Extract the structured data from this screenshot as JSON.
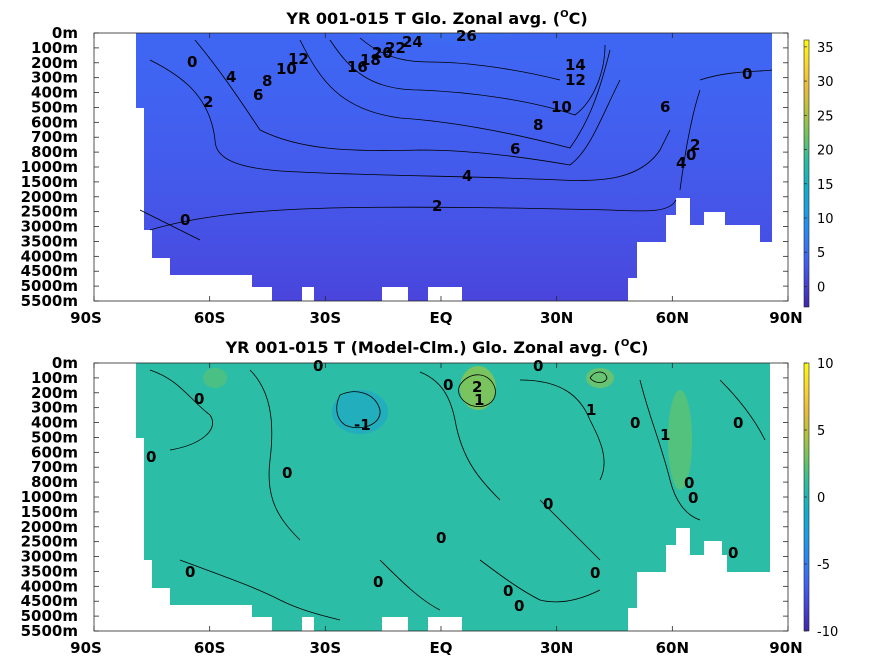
{
  "chart_data": [
    {
      "type": "heatmap",
      "title": "YR 001-015 T Glo. Zonal avg. (",
      "title_unit_sup": "O",
      "title_unit_tail": "C)",
      "x_ticks": [
        "90S",
        "60S",
        "30S",
        "EQ",
        "30N",
        "60N",
        "90N"
      ],
      "y_ticks": [
        "0m",
        "100m",
        "200m",
        "300m",
        "400m",
        "500m",
        "600m",
        "700m",
        "800m",
        "1000m",
        "1500m",
        "2000m",
        "2500m",
        "3000m",
        "3500m",
        "4000m",
        "4500m",
        "5000m",
        "5500m"
      ],
      "colorbar_ticks": [
        "35",
        "30",
        "25",
        "20",
        "15",
        "10",
        "5",
        "0"
      ],
      "colorbar_range": [
        -3,
        36
      ],
      "colormap": [
        "#3e26a8",
        "#4743d7",
        "#3f64f3",
        "#2b85f4",
        "#1c9ee6",
        "#11b0c7",
        "#2dbca0",
        "#6cc462",
        "#b2c23e",
        "#e9bb3b",
        "#fbd52f",
        "#f9fb0e"
      ],
      "contour_labels": [
        "0",
        "4",
        "2",
        "6",
        "8",
        "10",
        "12",
        "16",
        "18",
        "20",
        "22",
        "24",
        "26",
        "14",
        "12",
        "10",
        "8",
        "6",
        "4",
        "2",
        "0",
        "6",
        "4",
        "0",
        "2",
        "0"
      ]
    },
    {
      "type": "heatmap",
      "title": "YR 001-015 T (Model-Clm.) Glo. Zonal avg. (",
      "title_unit_sup": "O",
      "title_unit_tail": "C)",
      "x_ticks": [
        "90S",
        "60S",
        "30S",
        "EQ",
        "30N",
        "60N",
        "90N"
      ],
      "y_ticks": [
        "0m",
        "100m",
        "200m",
        "300m",
        "400m",
        "500m",
        "600m",
        "700m",
        "800m",
        "1000m",
        "1500m",
        "2000m",
        "2500m",
        "3000m",
        "3500m",
        "4000m",
        "4500m",
        "5000m",
        "5500m"
      ],
      "colorbar_ticks": [
        "10",
        "5",
        "0",
        "-5",
        "-10"
      ],
      "colorbar_range": [
        -10,
        10
      ],
      "colormap": [
        "#3e26a8",
        "#4743d7",
        "#3f64f3",
        "#2b85f4",
        "#1c9ee6",
        "#11b0c7",
        "#2dbca0",
        "#6cc462",
        "#b2c23e",
        "#e9bb3b",
        "#fbd52f",
        "#f9fb0e"
      ],
      "contour_labels": [
        "0",
        "0",
        "0",
        "0",
        "2",
        "1",
        "-1",
        "0",
        "1",
        "0",
        "1",
        "0",
        "0",
        "0",
        "0",
        "0",
        "0",
        "0",
        "0",
        "0",
        "0",
        "0",
        "0"
      ]
    }
  ]
}
